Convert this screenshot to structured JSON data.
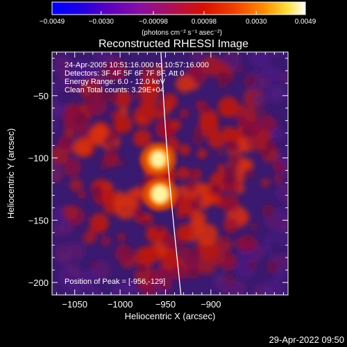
{
  "chart_data": {
    "type": "heatmap",
    "title": "Reconstructed RHESSI Image",
    "xlabel": "Heliocentric X (arcsec)",
    "ylabel": "Heliocentric Y (arcsec)",
    "xlim": [
      -1075,
      -815
    ],
    "ylim": [
      -210,
      -15
    ],
    "x_ticks": [
      -1050,
      -1000,
      -950,
      -900
    ],
    "x_tick_labels": [
      "−1050",
      "−1000",
      "−950",
      "−900"
    ],
    "y_ticks": [
      -50,
      -100,
      -150,
      -200
    ],
    "y_tick_labels": [
      "−50",
      "−100",
      "−150",
      "−200"
    ],
    "colorbar": {
      "min": -0.0049,
      "max": 0.0049,
      "ticks": [
        -0.0049,
        -0.003,
        -0.00098,
        0.00098,
        0.003,
        0.0049
      ],
      "tick_labels": [
        "−0.0049",
        "−0.0030",
        "−0.00098",
        "0.00098",
        "0.0030",
        "0.0049"
      ],
      "unit_label": "(photons cm⁻² s⁻¹ asec⁻²)"
    },
    "annotations": [
      "24-Apr-2005 10:51:16.000 to 10:57:16.000",
      "Detectors: 3F 4F 5F 6F 7F 8F, Att 0",
      "Energy Range: 6.0 - 12.0 keV",
      "Clean    Total counts: 3.29E+04"
    ],
    "peak_label": "Position of Peak = [-956,-129]",
    "sources": [
      {
        "x": -956,
        "y": -129,
        "value": 0.0049
      },
      {
        "x": -958,
        "y": -101,
        "value": 0.0043
      }
    ],
    "limb": [
      {
        "x": -955,
        "y": -15
      },
      {
        "x": -950,
        "y": -80
      },
      {
        "x": -943,
        "y": -140
      },
      {
        "x": -933,
        "y": -210
      }
    ],
    "footer": "29-Apr-2022 09:50"
  }
}
